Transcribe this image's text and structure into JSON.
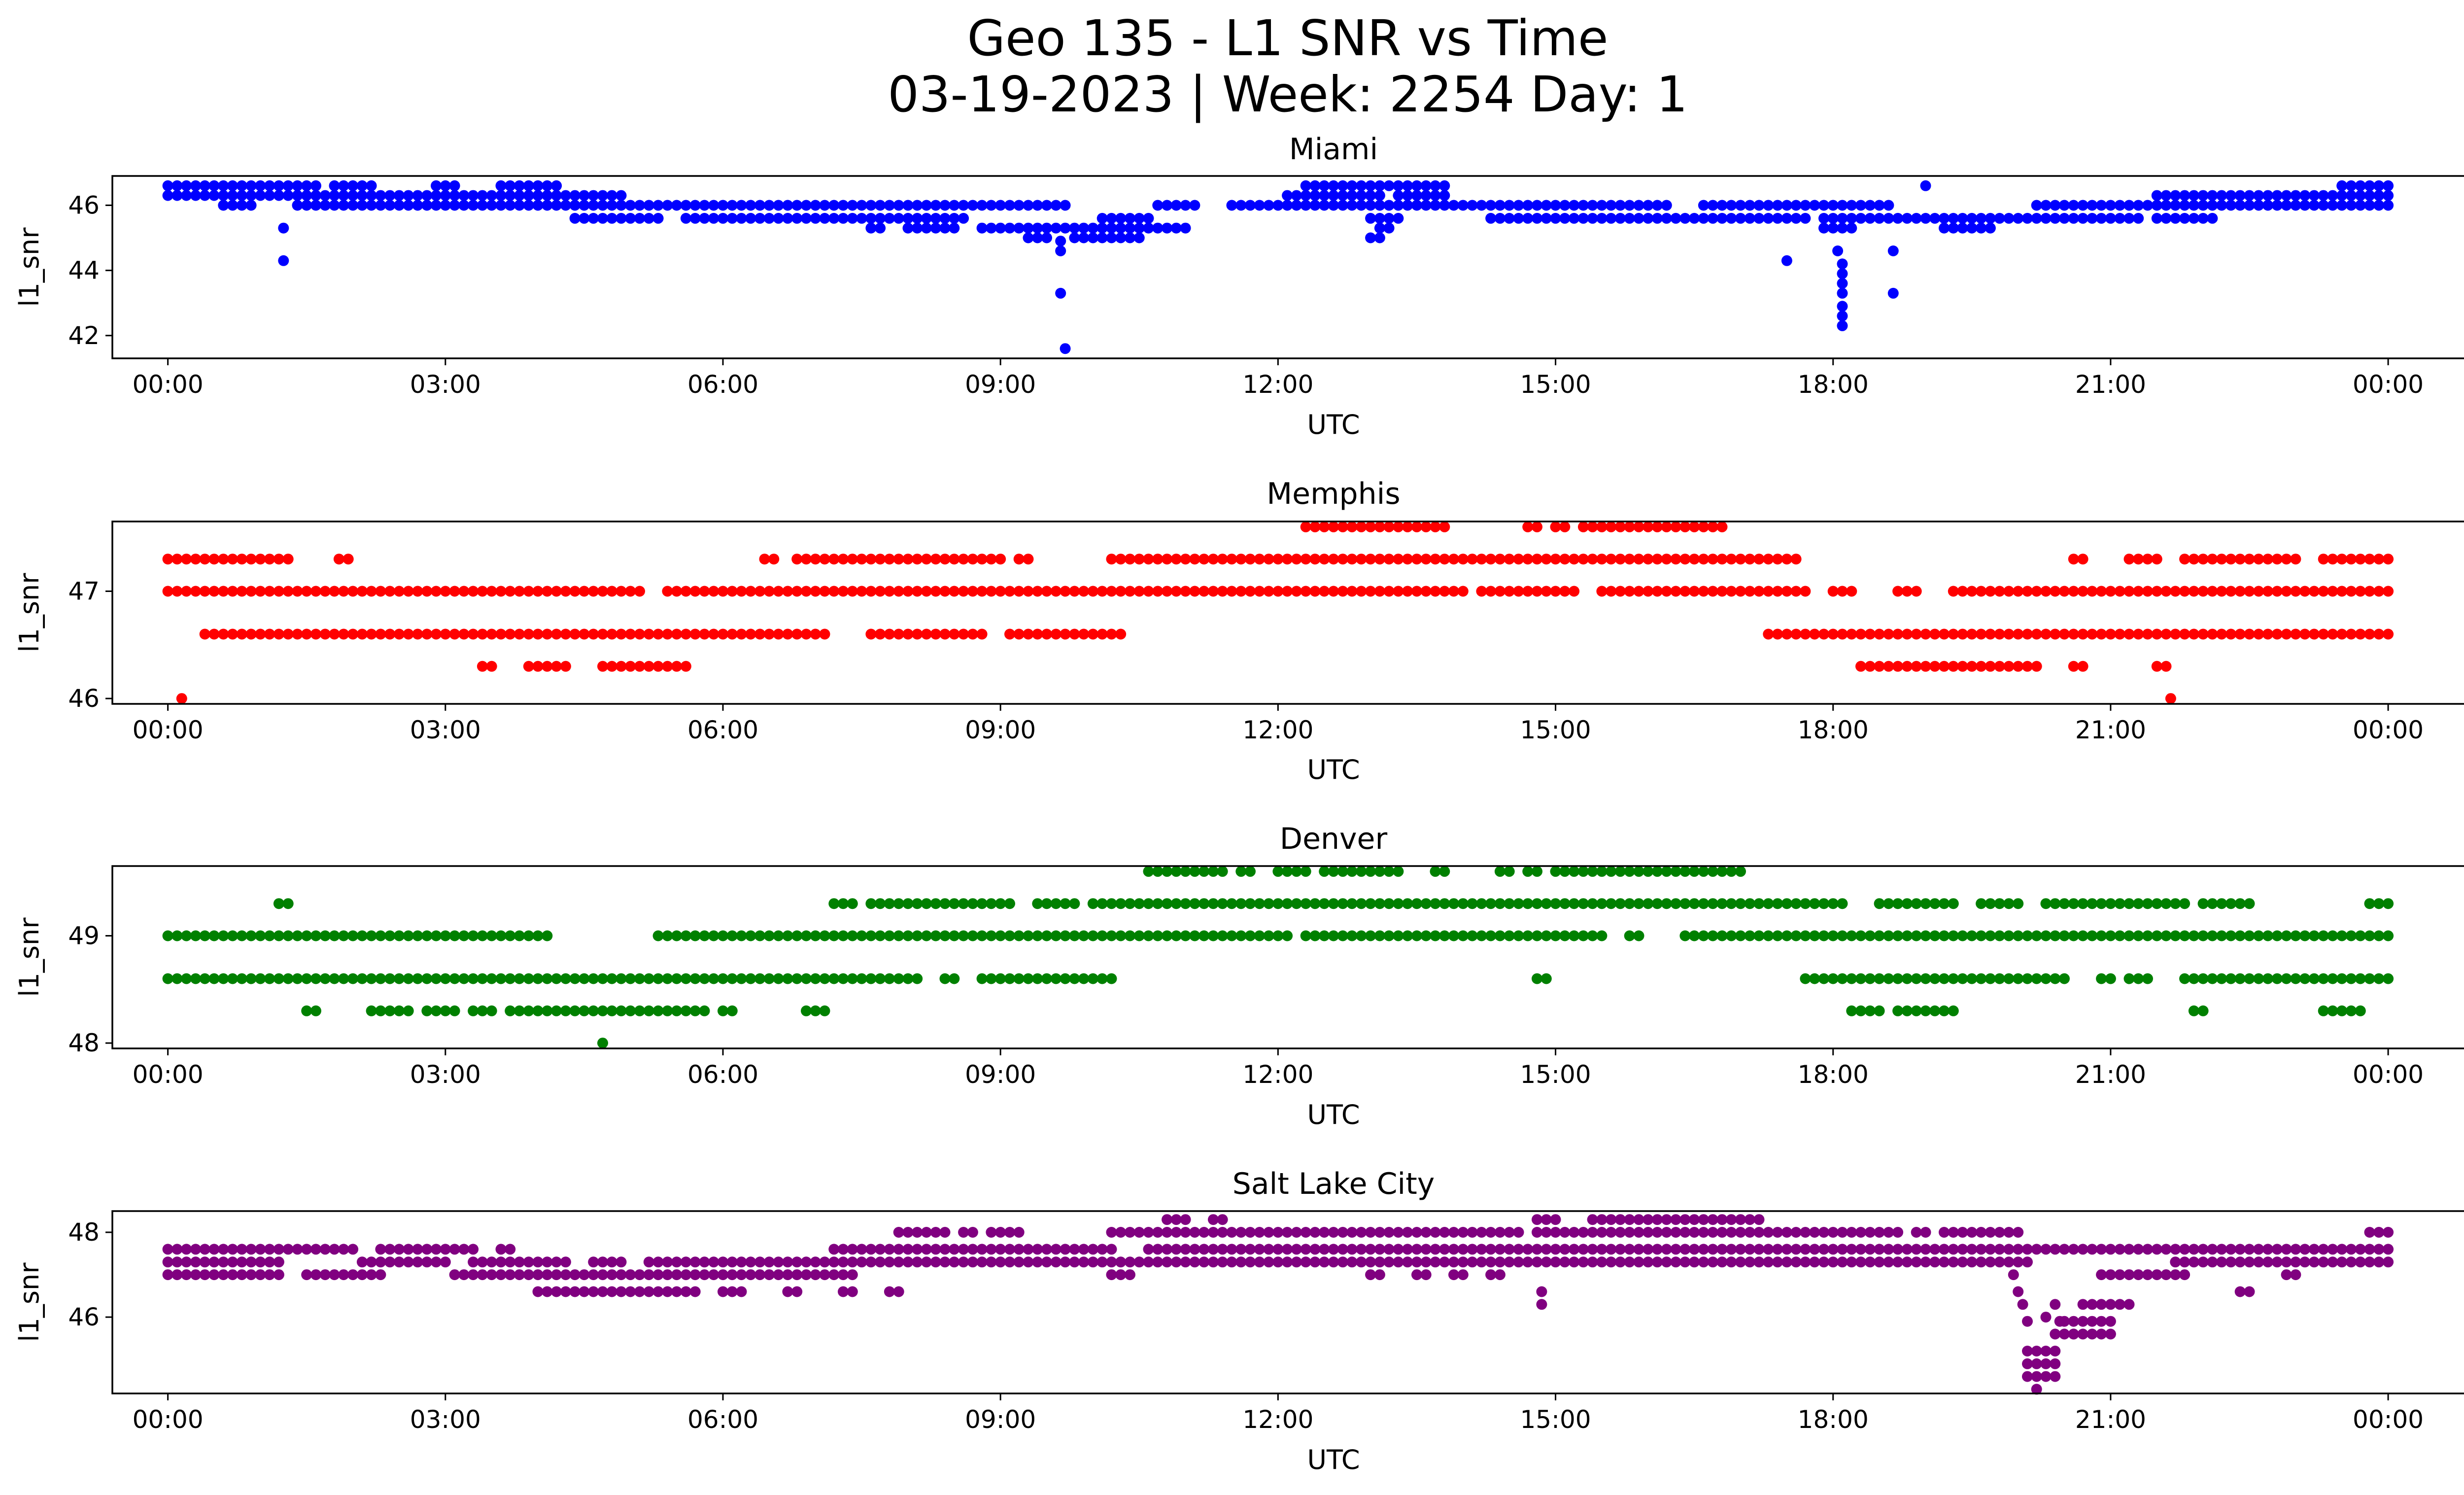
{
  "chart_data": {
    "title": "Geo 135 - L1 SNR vs Time",
    "subtitle": "03-19-2023 | Week: 2254 Day: 1",
    "type": "scatter",
    "x_ticks": [
      "00:00",
      "03:00",
      "06:00",
      "09:00",
      "12:00",
      "15:00",
      "18:00",
      "21:00",
      "00:00"
    ],
    "xlim": [
      -0.6,
      25.8
    ],
    "panels": [
      {
        "title": "Miami",
        "color": "#0000ff",
        "xlabel": "UTC",
        "ylabel": "l1_snr",
        "ylim": [
          41.3,
          46.9
        ],
        "yticks": [
          42,
          44,
          46
        ],
        "bands": [
          {
            "y": 46.6,
            "segments": [
              [
                0,
                1.6
              ],
              [
                1.8,
                2.2
              ],
              [
                2.9,
                3.1
              ],
              [
                3.6,
                4.2
              ],
              [
                12.3,
                13.8
              ],
              [
                23.5,
                24
              ]
            ]
          },
          {
            "y": 46.3,
            "segments": [
              [
                0,
                2.8
              ],
              [
                2.9,
                4.9
              ],
              [
                12.1,
                13.1
              ],
              [
                13.3,
                13.8
              ],
              [
                21.5,
                24
              ]
            ]
          },
          {
            "y": 46.0,
            "segments": [
              [
                0.6,
                0.9
              ],
              [
                1.4,
                2.9
              ],
              [
                3.0,
                9.7
              ],
              [
                10.7,
                11.1
              ],
              [
                11.5,
                16.2
              ],
              [
                16.6,
                18.6
              ],
              [
                20.2,
                24
              ]
            ]
          },
          {
            "y": 45.6,
            "segments": [
              [
                4.4,
                5.3
              ],
              [
                5.6,
                8.6
              ],
              [
                10.1,
                10.6
              ],
              [
                13.0,
                13.3
              ],
              [
                14.3,
                17.7
              ],
              [
                17.9,
                21.3
              ],
              [
                21.5,
                22.1
              ]
            ]
          },
          {
            "y": 45.3,
            "segments": [
              [
                7.6,
                7.7
              ],
              [
                8.0,
                8.5
              ],
              [
                8.8,
                11.0
              ],
              [
                13.1,
                13.2
              ],
              [
                17.9,
                18.2
              ],
              [
                19.2,
                19.7
              ]
            ]
          },
          {
            "y": 45.0,
            "segments": [
              [
                9.3,
                9.5
              ],
              [
                9.8,
                10.5
              ],
              [
                13.0,
                13.1
              ]
            ]
          }
        ],
        "points": [
          [
            1.25,
            45.3
          ],
          [
            1.25,
            44.3
          ],
          [
            9.65,
            44.9
          ],
          [
            9.65,
            44.6
          ],
          [
            9.65,
            43.3
          ],
          [
            9.7,
            41.6
          ],
          [
            17.5,
            44.3
          ],
          [
            18.05,
            44.6
          ],
          [
            18.1,
            44.2
          ],
          [
            18.1,
            43.9
          ],
          [
            18.1,
            43.6
          ],
          [
            18.1,
            43.3
          ],
          [
            18.1,
            42.9
          ],
          [
            18.1,
            42.6
          ],
          [
            18.1,
            42.3
          ],
          [
            18.65,
            44.6
          ],
          [
            18.65,
            43.3
          ],
          [
            19.0,
            46.6
          ]
        ]
      },
      {
        "title": "Memphis",
        "color": "#ff0000",
        "xlabel": "UTC",
        "ylabel": "l1_snr",
        "ylim": [
          45.95,
          47.65
        ],
        "yticks": [
          46,
          47
        ],
        "bands": [
          {
            "y": 47.6,
            "segments": [
              [
                12.3,
                13.8
              ],
              [
                14.7,
                14.8
              ],
              [
                15.0,
                15.1
              ],
              [
                15.3,
                16.8
              ]
            ]
          },
          {
            "y": 47.3,
            "segments": [
              [
                0,
                1.3
              ],
              [
                1.85,
                1.95
              ],
              [
                6.45,
                6.55
              ],
              [
                6.8,
                9.0
              ],
              [
                9.2,
                9.3
              ],
              [
                10.2,
                17.6
              ],
              [
                20.6,
                20.7
              ],
              [
                21.2,
                21.5
              ],
              [
                21.8,
                23.0
              ],
              [
                23.3,
                24
              ]
            ]
          },
          {
            "y": 47.0,
            "segments": [
              [
                0,
                5.1
              ],
              [
                5.4,
                14.0
              ],
              [
                14.2,
                15.2
              ],
              [
                15.5,
                17.7
              ],
              [
                18.0,
                18.2
              ],
              [
                18.7,
                18.9
              ],
              [
                19.3,
                24
              ]
            ]
          },
          {
            "y": 46.6,
            "segments": [
              [
                0.4,
                7.1
              ],
              [
                7.6,
                8.8
              ],
              [
                9.1,
                10.3
              ],
              [
                17.3,
                24
              ]
            ]
          },
          {
            "y": 46.3,
            "segments": [
              [
                3.4,
                3.5
              ],
              [
                3.9,
                4.0
              ],
              [
                4.1,
                4.3
              ],
              [
                4.7,
                5.6
              ],
              [
                18.3,
                20.2
              ],
              [
                20.6,
                20.7
              ],
              [
                21.5,
                21.6
              ]
            ]
          },
          {
            "y": 46.0,
            "segments": [
              [
                0.15,
                0.2
              ],
              [
                21.65,
                21.7
              ]
            ]
          }
        ],
        "points": []
      },
      {
        "title": "Denver",
        "color": "#008000",
        "xlabel": "UTC",
        "ylabel": "l1_snr",
        "ylim": [
          47.95,
          49.65
        ],
        "yticks": [
          48,
          49
        ],
        "bands": [
          {
            "y": 49.6,
            "segments": [
              [
                10.6,
                11.4
              ],
              [
                11.6,
                11.7
              ],
              [
                12.0,
                12.1
              ],
              [
                12.2,
                12.3
              ],
              [
                12.5,
                13.3
              ],
              [
                13.7,
                13.8
              ],
              [
                14.4,
                14.5
              ],
              [
                14.7,
                14.8
              ],
              [
                15.0,
                17.0
              ]
            ]
          },
          {
            "y": 49.3,
            "segments": [
              [
                1.2,
                1.3
              ],
              [
                7.2,
                7.4
              ],
              [
                7.6,
                9.1
              ],
              [
                9.4,
                9.8
              ],
              [
                10.0,
                18.1
              ],
              [
                18.5,
                19.3
              ],
              [
                19.6,
                20.0
              ],
              [
                20.3,
                21.8
              ],
              [
                22.0,
                22.5
              ],
              [
                23.8,
                24
              ]
            ]
          },
          {
            "y": 49.0,
            "segments": [
              [
                0,
                4.1
              ],
              [
                5.3,
                5.7
              ],
              [
                5.8,
                12.1
              ],
              [
                12.3,
                15.5
              ],
              [
                15.8,
                15.9
              ],
              [
                16.4,
                24
              ]
            ]
          },
          {
            "y": 48.6,
            "segments": [
              [
                0,
                8.1
              ],
              [
                8.4,
                8.5
              ],
              [
                8.8,
                10.2
              ],
              [
                14.8,
                14.9
              ],
              [
                17.7,
                20.5
              ],
              [
                20.9,
                21.0
              ],
              [
                21.2,
                21.4
              ],
              [
                21.8,
                24
              ]
            ]
          },
          {
            "y": 48.3,
            "segments": [
              [
                1.5,
                1.6
              ],
              [
                2.2,
                2.6
              ],
              [
                2.8,
                2.9
              ],
              [
                3.0,
                3.1
              ],
              [
                3.3,
                3.5
              ],
              [
                3.7,
                5.8
              ],
              [
                6.0,
                6.1
              ],
              [
                6.9,
                7.1
              ],
              [
                18.2,
                18.5
              ],
              [
                18.7,
                19.3
              ],
              [
                21.9,
                22.0
              ],
              [
                23.3,
                23.7
              ]
            ]
          },
          {
            "y": 48.0,
            "segments": [
              [
                4.7,
                4.75
              ]
            ]
          }
        ],
        "points": []
      },
      {
        "title": "Salt Lake City",
        "color": "#800080",
        "xlabel": "UTC",
        "ylabel": "l1_snr",
        "ylim": [
          44.2,
          48.5
        ],
        "yticks": [
          46,
          48
        ],
        "bands": [
          {
            "y": 48.3,
            "segments": [
              [
                10.8,
                11.0
              ],
              [
                11.3,
                11.4
              ],
              [
                14.8,
                15.0
              ],
              [
                15.4,
                17.2
              ]
            ]
          },
          {
            "y": 48.0,
            "segments": [
              [
                7.9,
                8.4
              ],
              [
                8.6,
                8.7
              ],
              [
                8.9,
                9.2
              ],
              [
                10.2,
                14.6
              ],
              [
                14.8,
                17.8
              ],
              [
                17.9,
                18.7
              ],
              [
                18.9,
                19.0
              ],
              [
                19.2,
                20.0
              ],
              [
                23.8,
                23.9
              ],
              [
                24,
                24
              ]
            ]
          },
          {
            "y": 47.6,
            "segments": [
              [
                0,
                2.0
              ],
              [
                2.3,
                3.3
              ],
              [
                3.6,
                3.7
              ],
              [
                7.2,
                10.2
              ],
              [
                10.6,
                24
              ]
            ]
          },
          {
            "y": 47.3,
            "segments": [
              [
                0,
                1.2
              ],
              [
                2.1,
                3.0
              ],
              [
                3.3,
                4.3
              ],
              [
                4.6,
                4.9
              ],
              [
                5.2,
                20.1
              ],
              [
                21.7,
                24
              ]
            ]
          },
          {
            "y": 47.0,
            "segments": [
              [
                0,
                0.7
              ],
              [
                0.8,
                1.2
              ],
              [
                1.5,
                2.3
              ],
              [
                3.1,
                7.4
              ],
              [
                10.2,
                10.4
              ],
              [
                13.0,
                13.1
              ],
              [
                13.5,
                13.6
              ],
              [
                13.9,
                14.0
              ],
              [
                14.3,
                14.4
              ],
              [
                20.9,
                21.8
              ],
              [
                22.9,
                23.0
              ]
            ]
          },
          {
            "y": 46.6,
            "segments": [
              [
                4.0,
                5.7
              ],
              [
                6.0,
                6.2
              ],
              [
                6.7,
                6.8
              ],
              [
                7.3,
                7.4
              ],
              [
                7.8,
                7.9
              ],
              [
                22.4,
                22.5
              ]
            ]
          },
          {
            "y": 46.3,
            "segments": [
              [
                20.7,
                21.2
              ]
            ]
          },
          {
            "y": 45.9,
            "segments": [
              [
                20.5,
                21.0
              ]
            ]
          },
          {
            "y": 45.6,
            "segments": [
              [
                20.4,
                20.6
              ],
              [
                20.6,
                21.0
              ]
            ]
          },
          {
            "y": 45.2,
            "segments": [
              [
                20.1,
                20.4
              ]
            ]
          },
          {
            "y": 44.9,
            "segments": [
              [
                20.1,
                20.4
              ]
            ]
          },
          {
            "y": 44.6,
            "segments": [
              [
                20.1,
                20.4
              ]
            ]
          }
        ],
        "points": [
          [
            14.85,
            46.6
          ],
          [
            14.85,
            46.3
          ],
          [
            19.95,
            47.0
          ],
          [
            20.0,
            46.6
          ],
          [
            20.05,
            46.3
          ],
          [
            20.1,
            45.9
          ],
          [
            20.2,
            44.3
          ],
          [
            20.3,
            46.0
          ],
          [
            20.4,
            46.3
          ],
          [
            20.45,
            45.9
          ]
        ]
      }
    ]
  }
}
